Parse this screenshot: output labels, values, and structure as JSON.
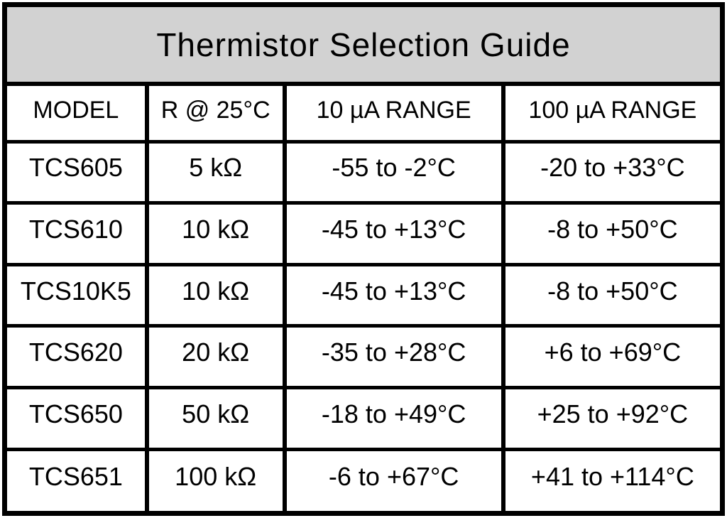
{
  "title": "Thermistor Selection Guide",
  "table": {
    "headers": [
      "MODEL",
      "R @ 25°C",
      "10 µA RANGE",
      "100 µA RANGE"
    ],
    "rows": [
      [
        "TCS605",
        "5 kΩ",
        "-55 to -2°C",
        "-20 to +33°C"
      ],
      [
        "TCS610",
        "10 kΩ",
        "-45 to +13°C",
        "-8 to +50°C"
      ],
      [
        "TCS10K5",
        "10 kΩ",
        "-45 to +13°C",
        "-8 to +50°C"
      ],
      [
        "TCS620",
        "20 kΩ",
        "-35 to +28°C",
        "+6 to +69°C"
      ],
      [
        "TCS650",
        "50 kΩ",
        "-18 to +49°C",
        "+25 to +92°C"
      ],
      [
        "TCS651",
        "100 kΩ",
        "-6 to +67°C",
        "+41 to +114°C"
      ]
    ]
  },
  "colors": {
    "title_background": "#d2d2d2",
    "border": "#000000",
    "cell_background": "#ffffff",
    "text": "#000000"
  }
}
